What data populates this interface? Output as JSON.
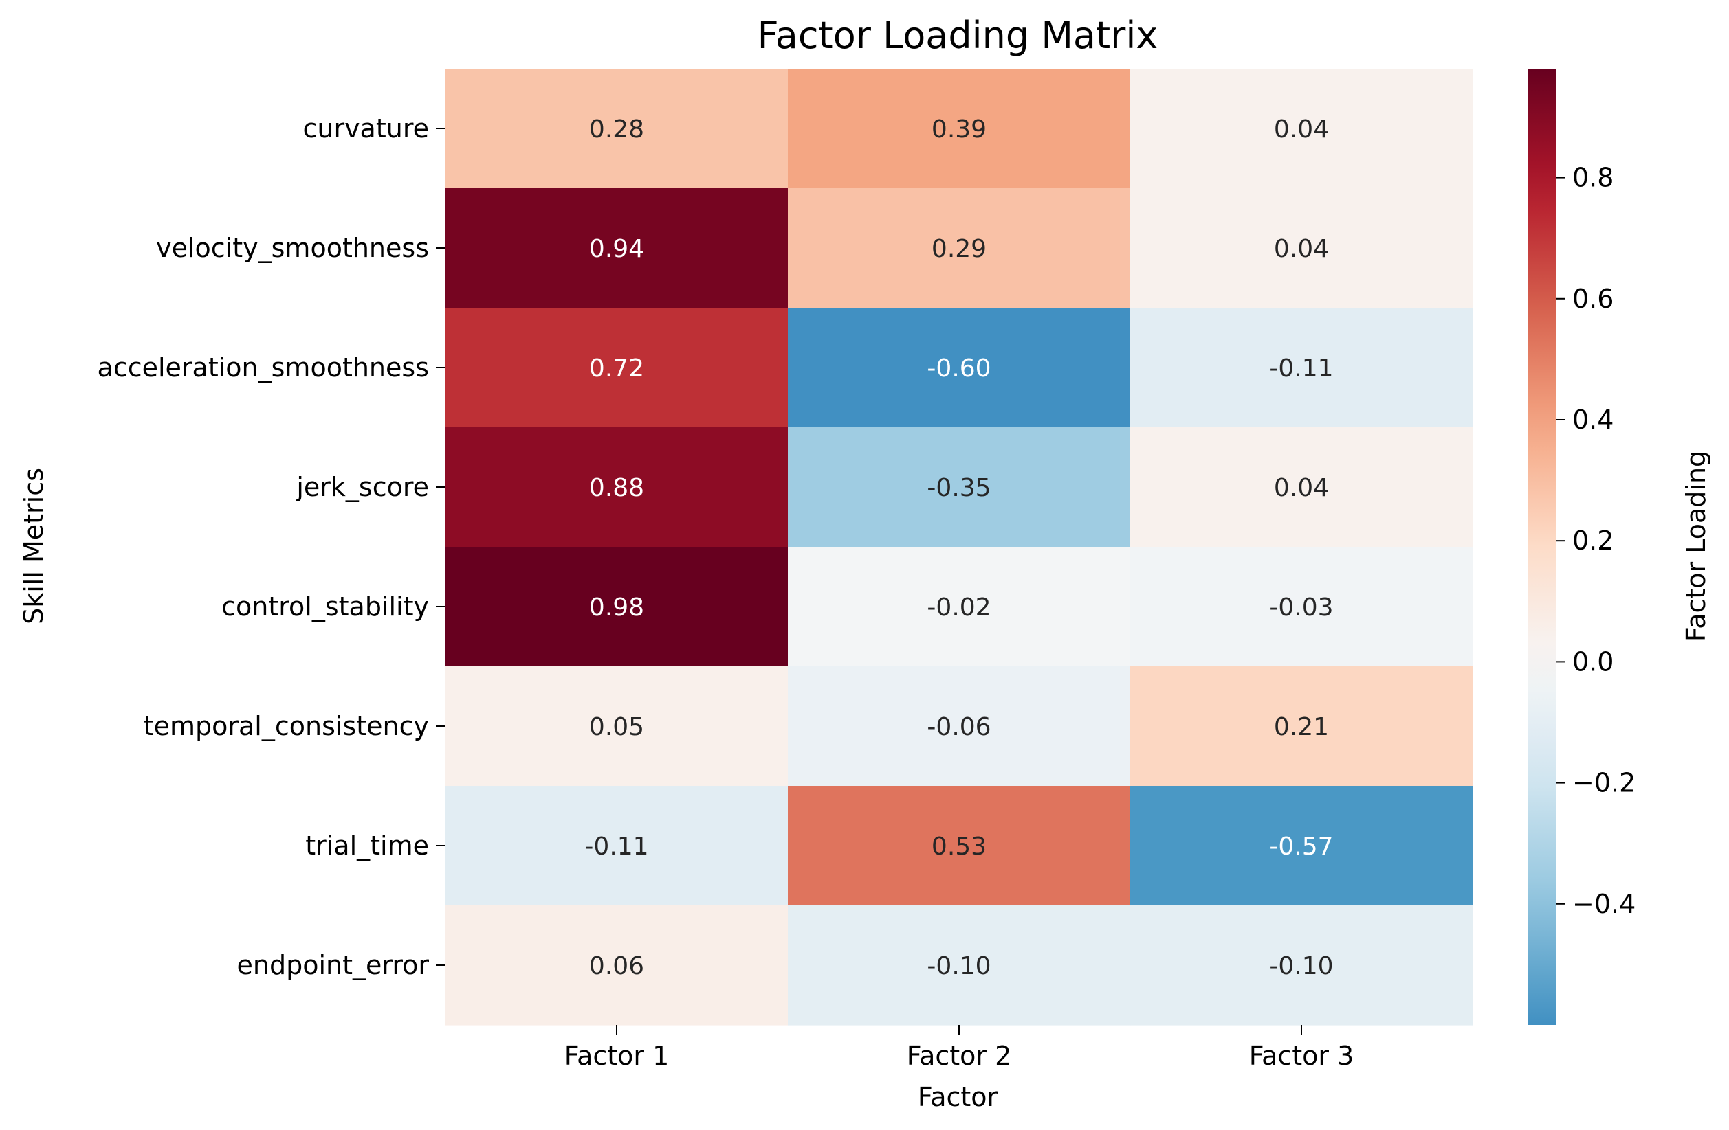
{
  "chart_data": {
    "type": "heatmap",
    "title": "Factor Loading Matrix",
    "xlabel": "Factor",
    "ylabel": "Skill Metrics",
    "x_categories": [
      "Factor 1",
      "Factor 2",
      "Factor 3"
    ],
    "y_categories": [
      "curvature",
      "velocity_smoothness",
      "acceleration_smoothness",
      "jerk_score",
      "control_stability",
      "temporal_consistency",
      "trial_time",
      "endpoint_error"
    ],
    "values": [
      [
        0.28,
        0.39,
        0.04
      ],
      [
        0.94,
        0.29,
        0.04
      ],
      [
        0.72,
        -0.6,
        -0.11
      ],
      [
        0.88,
        -0.35,
        0.04
      ],
      [
        0.98,
        -0.02,
        -0.03
      ],
      [
        0.05,
        -0.06,
        0.21
      ],
      [
        -0.11,
        0.53,
        -0.57
      ],
      [
        0.06,
        -0.1,
        -0.1
      ]
    ],
    "value_labels": [
      [
        "0.28",
        "0.39",
        "0.04"
      ],
      [
        "0.94",
        "0.29",
        "0.04"
      ],
      [
        "0.72",
        "-0.60",
        "-0.11"
      ],
      [
        "0.88",
        "-0.35",
        "0.04"
      ],
      [
        "0.98",
        "-0.02",
        "-0.03"
      ],
      [
        "0.05",
        "-0.06",
        "0.21"
      ],
      [
        "-0.11",
        "0.53",
        "-0.57"
      ],
      [
        "0.06",
        "-0.10",
        "-0.10"
      ]
    ],
    "colorbar": {
      "label": "Factor Loading",
      "colormap": "RdBu_r",
      "vmin": -0.6,
      "vmax": 0.98,
      "center": 0,
      "ticks": [
        -0.4,
        -0.2,
        0.0,
        0.2,
        0.4,
        0.6,
        0.8
      ],
      "tick_labels": [
        "−0.4",
        "−0.2",
        "0.0",
        "0.2",
        "0.4",
        "0.6",
        "0.8"
      ]
    }
  }
}
